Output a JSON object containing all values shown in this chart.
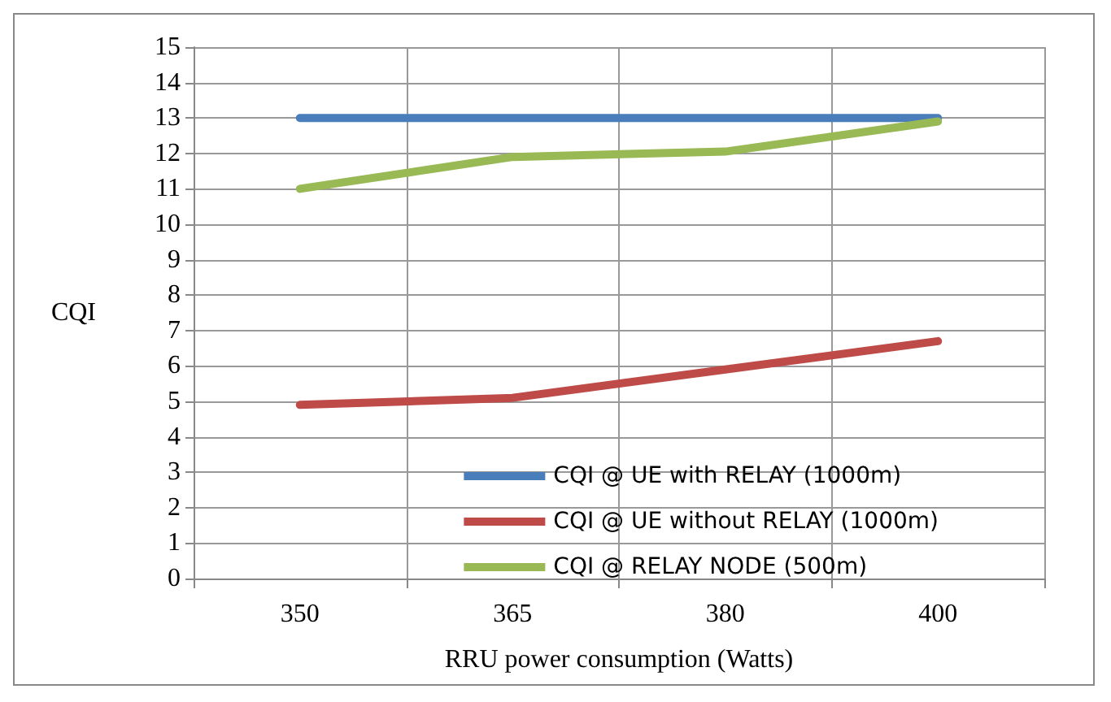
{
  "chart_data": {
    "type": "line",
    "xlabel": "RRU power consumption (Watts)",
    "ylabel": "CQI",
    "categories": [
      "350",
      "365",
      "380",
      "400"
    ],
    "series": [
      {
        "name": "CQI @ UE with RELAY (1000m)",
        "color": "#4a7ebb",
        "values": [
          13,
          13,
          13,
          13
        ]
      },
      {
        "name": "CQI @ UE without RELAY (1000m)",
        "color": "#be4b48",
        "values": [
          4.9,
          5.1,
          5.9,
          6.7
        ]
      },
      {
        "name": "CQI @ RELAY NODE (500m)",
        "color": "#98b954",
        "values": [
          11,
          11.9,
          12.05,
          12.9
        ]
      }
    ],
    "ylim": [
      0,
      15
    ],
    "yticks": [
      0,
      1,
      2,
      3,
      4,
      5,
      6,
      7,
      8,
      9,
      10,
      11,
      12,
      13,
      14,
      15
    ],
    "grid": true,
    "legend": "bottom right",
    "marker": "none",
    "line_style": "solid"
  }
}
